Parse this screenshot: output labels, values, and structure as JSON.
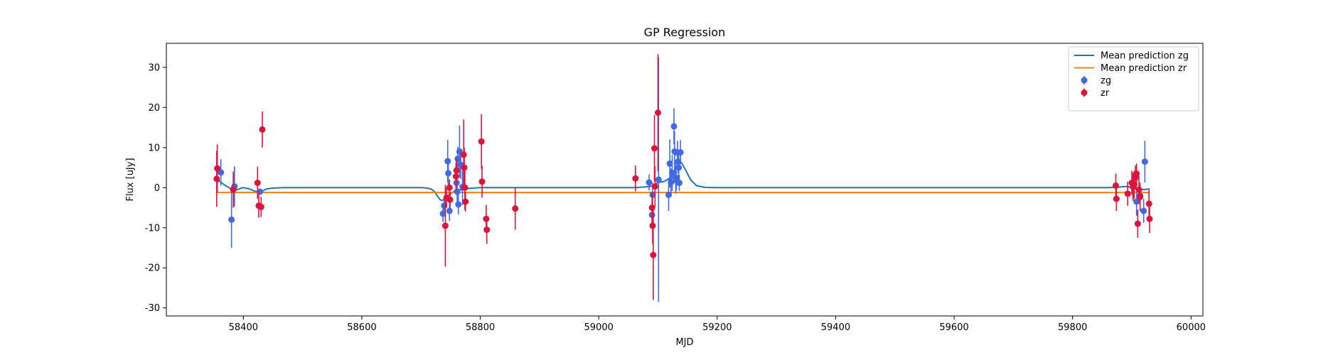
{
  "chart_data": {
    "type": "scatter",
    "title": "GP Regression",
    "xlabel": "MJD",
    "ylabel": "Flux [uJy]",
    "xlim": [
      58270,
      60020
    ],
    "ylim": [
      -32,
      36
    ],
    "xticks": [
      58400,
      58600,
      58800,
      59000,
      59200,
      59400,
      59600,
      59800,
      60000
    ],
    "yticks": [
      -30,
      -20,
      -10,
      0,
      10,
      20,
      30
    ],
    "grid": false,
    "legend_position": "top-right",
    "legend": [
      {
        "label": "Mean prediction zg",
        "kind": "line",
        "color": "#1f77b4"
      },
      {
        "label": "Mean prediction zr",
        "kind": "line",
        "color": "#ff7f0e"
      },
      {
        "label": "zg",
        "kind": "errorbar",
        "color": "#4169e1"
      },
      {
        "label": "zr",
        "kind": "errorbar",
        "color": "#dc143c"
      }
    ],
    "lines": [
      {
        "name": "Mean prediction zg",
        "color": "#1f77b4",
        "x": [
          58355,
          58360,
          58365,
          58370,
          58375,
          58380,
          58385,
          58390,
          58395,
          58400,
          58410,
          58420,
          58425,
          58430,
          58435,
          58440,
          58450,
          58470,
          58500,
          58600,
          58700,
          58710,
          58718,
          58724,
          58728,
          58732,
          58736,
          58740,
          58745,
          58750,
          58755,
          58760,
          58765,
          58770,
          58775,
          58780,
          58790,
          58800,
          58820,
          58900,
          59000,
          59060,
          59080,
          59090,
          59095,
          59100,
          59110,
          59118,
          59124,
          59130,
          59135,
          59140,
          59148,
          59155,
          59165,
          59180,
          59200,
          59300,
          59400,
          59500,
          59600,
          59700,
          59800,
          59860,
          59875,
          59890,
          59900,
          59910,
          59920,
          59930
        ],
        "y": [
          1.5,
          1.6,
          1.0,
          0.5,
          0.1,
          -0.4,
          -0.6,
          -0.5,
          -0.2,
          0.0,
          -0.3,
          -0.9,
          -1.1,
          -1.1,
          -0.6,
          -0.3,
          -0.1,
          0.0,
          0.0,
          0.0,
          0.0,
          -0.1,
          -0.4,
          -1.2,
          -2.2,
          -3.0,
          -3.2,
          -2.8,
          -2.0,
          -1.5,
          -1.0,
          -0.7,
          -0.5,
          -0.6,
          -0.4,
          -0.2,
          -0.1,
          0.0,
          0.0,
          0.0,
          0.0,
          0.0,
          0.2,
          0.4,
          0.8,
          1.3,
          1.5,
          2.2,
          3.0,
          5.0,
          6.0,
          6.2,
          4.0,
          2.0,
          0.5,
          0.05,
          0.0,
          0.0,
          0.0,
          0.0,
          0.0,
          0.0,
          0.0,
          0.0,
          0.1,
          0.3,
          0.1,
          -0.2,
          -0.5,
          -0.3
        ]
      },
      {
        "name": "Mean prediction zr",
        "color": "#ff7f0e",
        "x": [
          58355,
          59930
        ],
        "y": [
          -1.2,
          -1.2
        ]
      }
    ],
    "series": [
      {
        "name": "zg",
        "color": "#4169e1",
        "points": [
          {
            "x": 58362,
            "y": 3.8,
            "err": 3.3
          },
          {
            "x": 58380,
            "y": -8.0,
            "err": 7.0
          },
          {
            "x": 58385,
            "y": 0.3,
            "err": 5.0
          },
          {
            "x": 58428,
            "y": -1.0,
            "err": 0.5
          },
          {
            "x": 58737,
            "y": -6.5,
            "err": 2.0
          },
          {
            "x": 58739,
            "y": -4.5,
            "err": 1.5
          },
          {
            "x": 58745,
            "y": 6.6,
            "err": 5.3
          },
          {
            "x": 58746,
            "y": 3.6,
            "err": 3.5
          },
          {
            "x": 58748,
            "y": -5.8,
            "err": 2.5
          },
          {
            "x": 58760,
            "y": 1.2,
            "err": 3.0
          },
          {
            "x": 58761,
            "y": -1.0,
            "err": 3.0
          },
          {
            "x": 58762,
            "y": 7.2,
            "err": 3.0
          },
          {
            "x": 58763,
            "y": -4.2,
            "err": 2.5
          },
          {
            "x": 58765,
            "y": 9.0,
            "err": 6.5
          },
          {
            "x": 58767,
            "y": 5.7,
            "err": 3.5
          },
          {
            "x": 58770,
            "y": 0.2,
            "err": 4.5
          },
          {
            "x": 59085,
            "y": 1.3,
            "err": 2.0
          },
          {
            "x": 59090,
            "y": -6.8,
            "err": 2.5
          },
          {
            "x": 59091,
            "y": -1.8,
            "err": 3.0
          },
          {
            "x": 59101,
            "y": 2.0,
            "err": 30.5
          },
          {
            "x": 59118,
            "y": -1.8,
            "err": 4.0
          },
          {
            "x": 59120,
            "y": 6.0,
            "err": 6.0
          },
          {
            "x": 59122,
            "y": 1.3,
            "err": 3.5
          },
          {
            "x": 59124,
            "y": 3.7,
            "err": 4.5
          },
          {
            "x": 59127,
            "y": 15.3,
            "err": 4.5
          },
          {
            "x": 59128,
            "y": 9.0,
            "err": 5.0
          },
          {
            "x": 59130,
            "y": 2.5,
            "err": 4.0
          },
          {
            "x": 59131,
            "y": 1.8,
            "err": 2.5
          },
          {
            "x": 59133,
            "y": 8.7,
            "err": 3.0
          },
          {
            "x": 59134,
            "y": 6.5,
            "err": 3.0
          },
          {
            "x": 59135,
            "y": 5.0,
            "err": 3.0
          },
          {
            "x": 59136,
            "y": 1.2,
            "err": 2.0
          },
          {
            "x": 59138,
            "y": 8.8,
            "err": 3.0
          },
          {
            "x": 59908,
            "y": -3.5,
            "err": 3.5
          },
          {
            "x": 59914,
            "y": -2.0,
            "err": 2.0
          },
          {
            "x": 59920,
            "y": -5.8,
            "err": 3.0
          },
          {
            "x": 59922,
            "y": 6.5,
            "err": 5.2
          }
        ]
      },
      {
        "name": "zr",
        "color": "#dc143c",
        "points": [
          {
            "x": 58355,
            "y": 2.2,
            "err": 7.0
          },
          {
            "x": 58356,
            "y": 4.8,
            "err": 6.0
          },
          {
            "x": 58383,
            "y": -0.5,
            "err": 4.5
          },
          {
            "x": 58424,
            "y": 1.2,
            "err": 4.0
          },
          {
            "x": 58426,
            "y": -4.5,
            "err": 3.0
          },
          {
            "x": 58430,
            "y": -4.8,
            "err": 2.5
          },
          {
            "x": 58432,
            "y": 14.5,
            "err": 4.5
          },
          {
            "x": 58741,
            "y": -9.5,
            "err": 10.2
          },
          {
            "x": 58743,
            "y": -2.5,
            "err": 2.5
          },
          {
            "x": 58748,
            "y": 0.0,
            "err": 2.0
          },
          {
            "x": 58749,
            "y": -3.0,
            "err": 2.0
          },
          {
            "x": 58759,
            "y": 2.8,
            "err": 3.5
          },
          {
            "x": 58760,
            "y": 4.3,
            "err": 3.0
          },
          {
            "x": 58772,
            "y": 8.2,
            "err": 8.8
          },
          {
            "x": 58773,
            "y": 5.0,
            "err": 5.0
          },
          {
            "x": 58774,
            "y": 0.0,
            "err": 5.5
          },
          {
            "x": 58775,
            "y": -3.5,
            "err": 2.5
          },
          {
            "x": 58802,
            "y": 11.5,
            "err": 6.8
          },
          {
            "x": 58803,
            "y": 1.5,
            "err": 4.0
          },
          {
            "x": 58810,
            "y": -7.8,
            "err": 3.5
          },
          {
            "x": 58811,
            "y": -10.5,
            "err": 3.5
          },
          {
            "x": 58859,
            "y": -5.2,
            "err": 5.3
          },
          {
            "x": 59062,
            "y": 2.3,
            "err": 3.2
          },
          {
            "x": 59090,
            "y": -5.0,
            "err": 4.0
          },
          {
            "x": 59091,
            "y": -9.5,
            "err": 4.5
          },
          {
            "x": 59092,
            "y": -16.8,
            "err": 11.2
          },
          {
            "x": 59094,
            "y": 9.8,
            "err": 8.3
          },
          {
            "x": 59095,
            "y": 0.3,
            "err": 5.0
          },
          {
            "x": 59100,
            "y": 18.7,
            "err": 14.6
          },
          {
            "x": 59873,
            "y": 0.5,
            "err": 3.0
          },
          {
            "x": 59874,
            "y": -2.8,
            "err": 3.0
          },
          {
            "x": 59893,
            "y": -1.5,
            "err": 3.0
          },
          {
            "x": 59900,
            "y": 1.2,
            "err": 3.0
          },
          {
            "x": 59902,
            "y": 0.2,
            "err": 3.5
          },
          {
            "x": 59904,
            "y": 0.7,
            "err": 3.5
          },
          {
            "x": 59906,
            "y": 2.5,
            "err": 3.0
          },
          {
            "x": 59908,
            "y": 3.5,
            "err": 2.5
          },
          {
            "x": 59910,
            "y": -9.0,
            "err": 3.5
          },
          {
            "x": 59912,
            "y": -0.5,
            "err": 3.5
          },
          {
            "x": 59914,
            "y": -2.3,
            "err": 3.5
          },
          {
            "x": 59929,
            "y": -4.0,
            "err": 3.5
          },
          {
            "x": 59930,
            "y": -7.8,
            "err": 3.5
          }
        ]
      }
    ]
  }
}
